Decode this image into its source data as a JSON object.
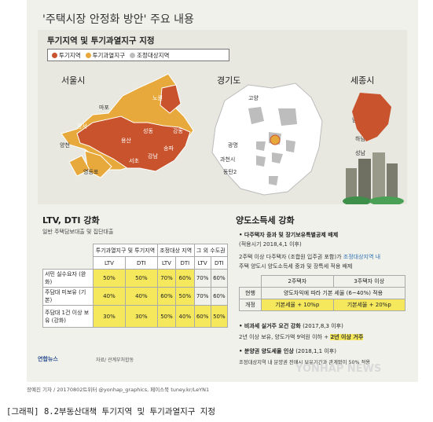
{
  "title": {
    "main": "'주택시장 안정화 방안' 주요 내용"
  },
  "top": {
    "subtitle": "투기지역 및 투기과열지구 지정",
    "legend": [
      {
        "label": "투기지역",
        "color": "#c9532c"
      },
      {
        "label": "투기과열지구",
        "color": "#e8a93c"
      },
      {
        "label": "조정대상지역",
        "color": "#bdbdbd"
      }
    ],
    "regions": {
      "seoul": "서울시",
      "gyeonggi": "경기도",
      "sejong": "세종시"
    },
    "seoul_labels": [
      "노원",
      "마포",
      "강서",
      "성동",
      "강동",
      "양천",
      "용산",
      "송파",
      "강남",
      "서초",
      "영등포"
    ],
    "gyeonggi_labels": [
      "고양",
      "남양주",
      "하남",
      "광명",
      "성남",
      "과천시",
      "동탄2"
    ]
  },
  "ltv": {
    "title": "LTV, DTI 강화",
    "subtitle": "일반 주택담보대출 및 집단대출",
    "col_groups": [
      "투기과열지구 및 투기지역",
      "조정대상 지역",
      "그 외 수도권"
    ],
    "sub_cols": [
      "LTV",
      "DTI",
      "LTV",
      "DTI",
      "LTV",
      "DTI"
    ],
    "rows": [
      {
        "label": "서민 실수요자 (완화)",
        "values": [
          "50%",
          "50%",
          "70%",
          "60%",
          "70%",
          "60%"
        ]
      },
      {
        "label": "주담대 미보유 (기본)",
        "values": [
          "40%",
          "40%",
          "60%",
          "50%",
          "70%",
          "60%"
        ]
      },
      {
        "label": "주담대 1건 이상 보유 (강화)",
        "values": [
          "30%",
          "30%",
          "50%",
          "40%",
          "60%",
          "50%"
        ]
      }
    ]
  },
  "tax": {
    "title": "양도소득세 강화",
    "s1_head": "다주택자 중과 및 장기보유특별공제 배제",
    "s1_date": "(적용시기 2018,4,1 이후)",
    "s1_body1a": "2주택 이상 다주택자 (조합원 입주권 포함)가",
    "s1_body1b": "조정대상지역 내",
    "s1_body2": "주택 양도시 양도소득세 중과 및 장특세 적용 배제",
    "table_head": [
      "",
      "2주택자",
      "3주택자 이상"
    ],
    "row1": {
      "label": "현행",
      "value": "양도차익에 따라 기본 세율 (6~40%) 적용"
    },
    "row2": {
      "label": "개정",
      "v1": "기본세율 + 10%p",
      "v2": "기본세율 + 20%p"
    },
    "s2_head": "비과세 실거주 요건 강화",
    "s2_date": "(2017,8,3 이후)",
    "s2_body_a": "2년 이상 보유, 양도가액 9억원 이하 +",
    "s2_body_b": "2년 이상 거주",
    "s3_head": "분양권 양도세율 인상",
    "s3_date": "(2018,1,1 이후)",
    "s3_body": "조정대상지역 내 분양권 전매시 보유기간과 관계없이 50% 적용"
  },
  "footer": {
    "logo": "연합뉴스",
    "source": "자료/ 관계부처합동",
    "watermark": "YONHAP NEWS",
    "credit": "장예진 기자 / 20170802트위터 @yonhap_graphics, 페이스북 tuney.kr/LeYN1",
    "caption": "[그래픽] 8.2부동산대책 투기지역 및 투기과열지구 지정"
  }
}
